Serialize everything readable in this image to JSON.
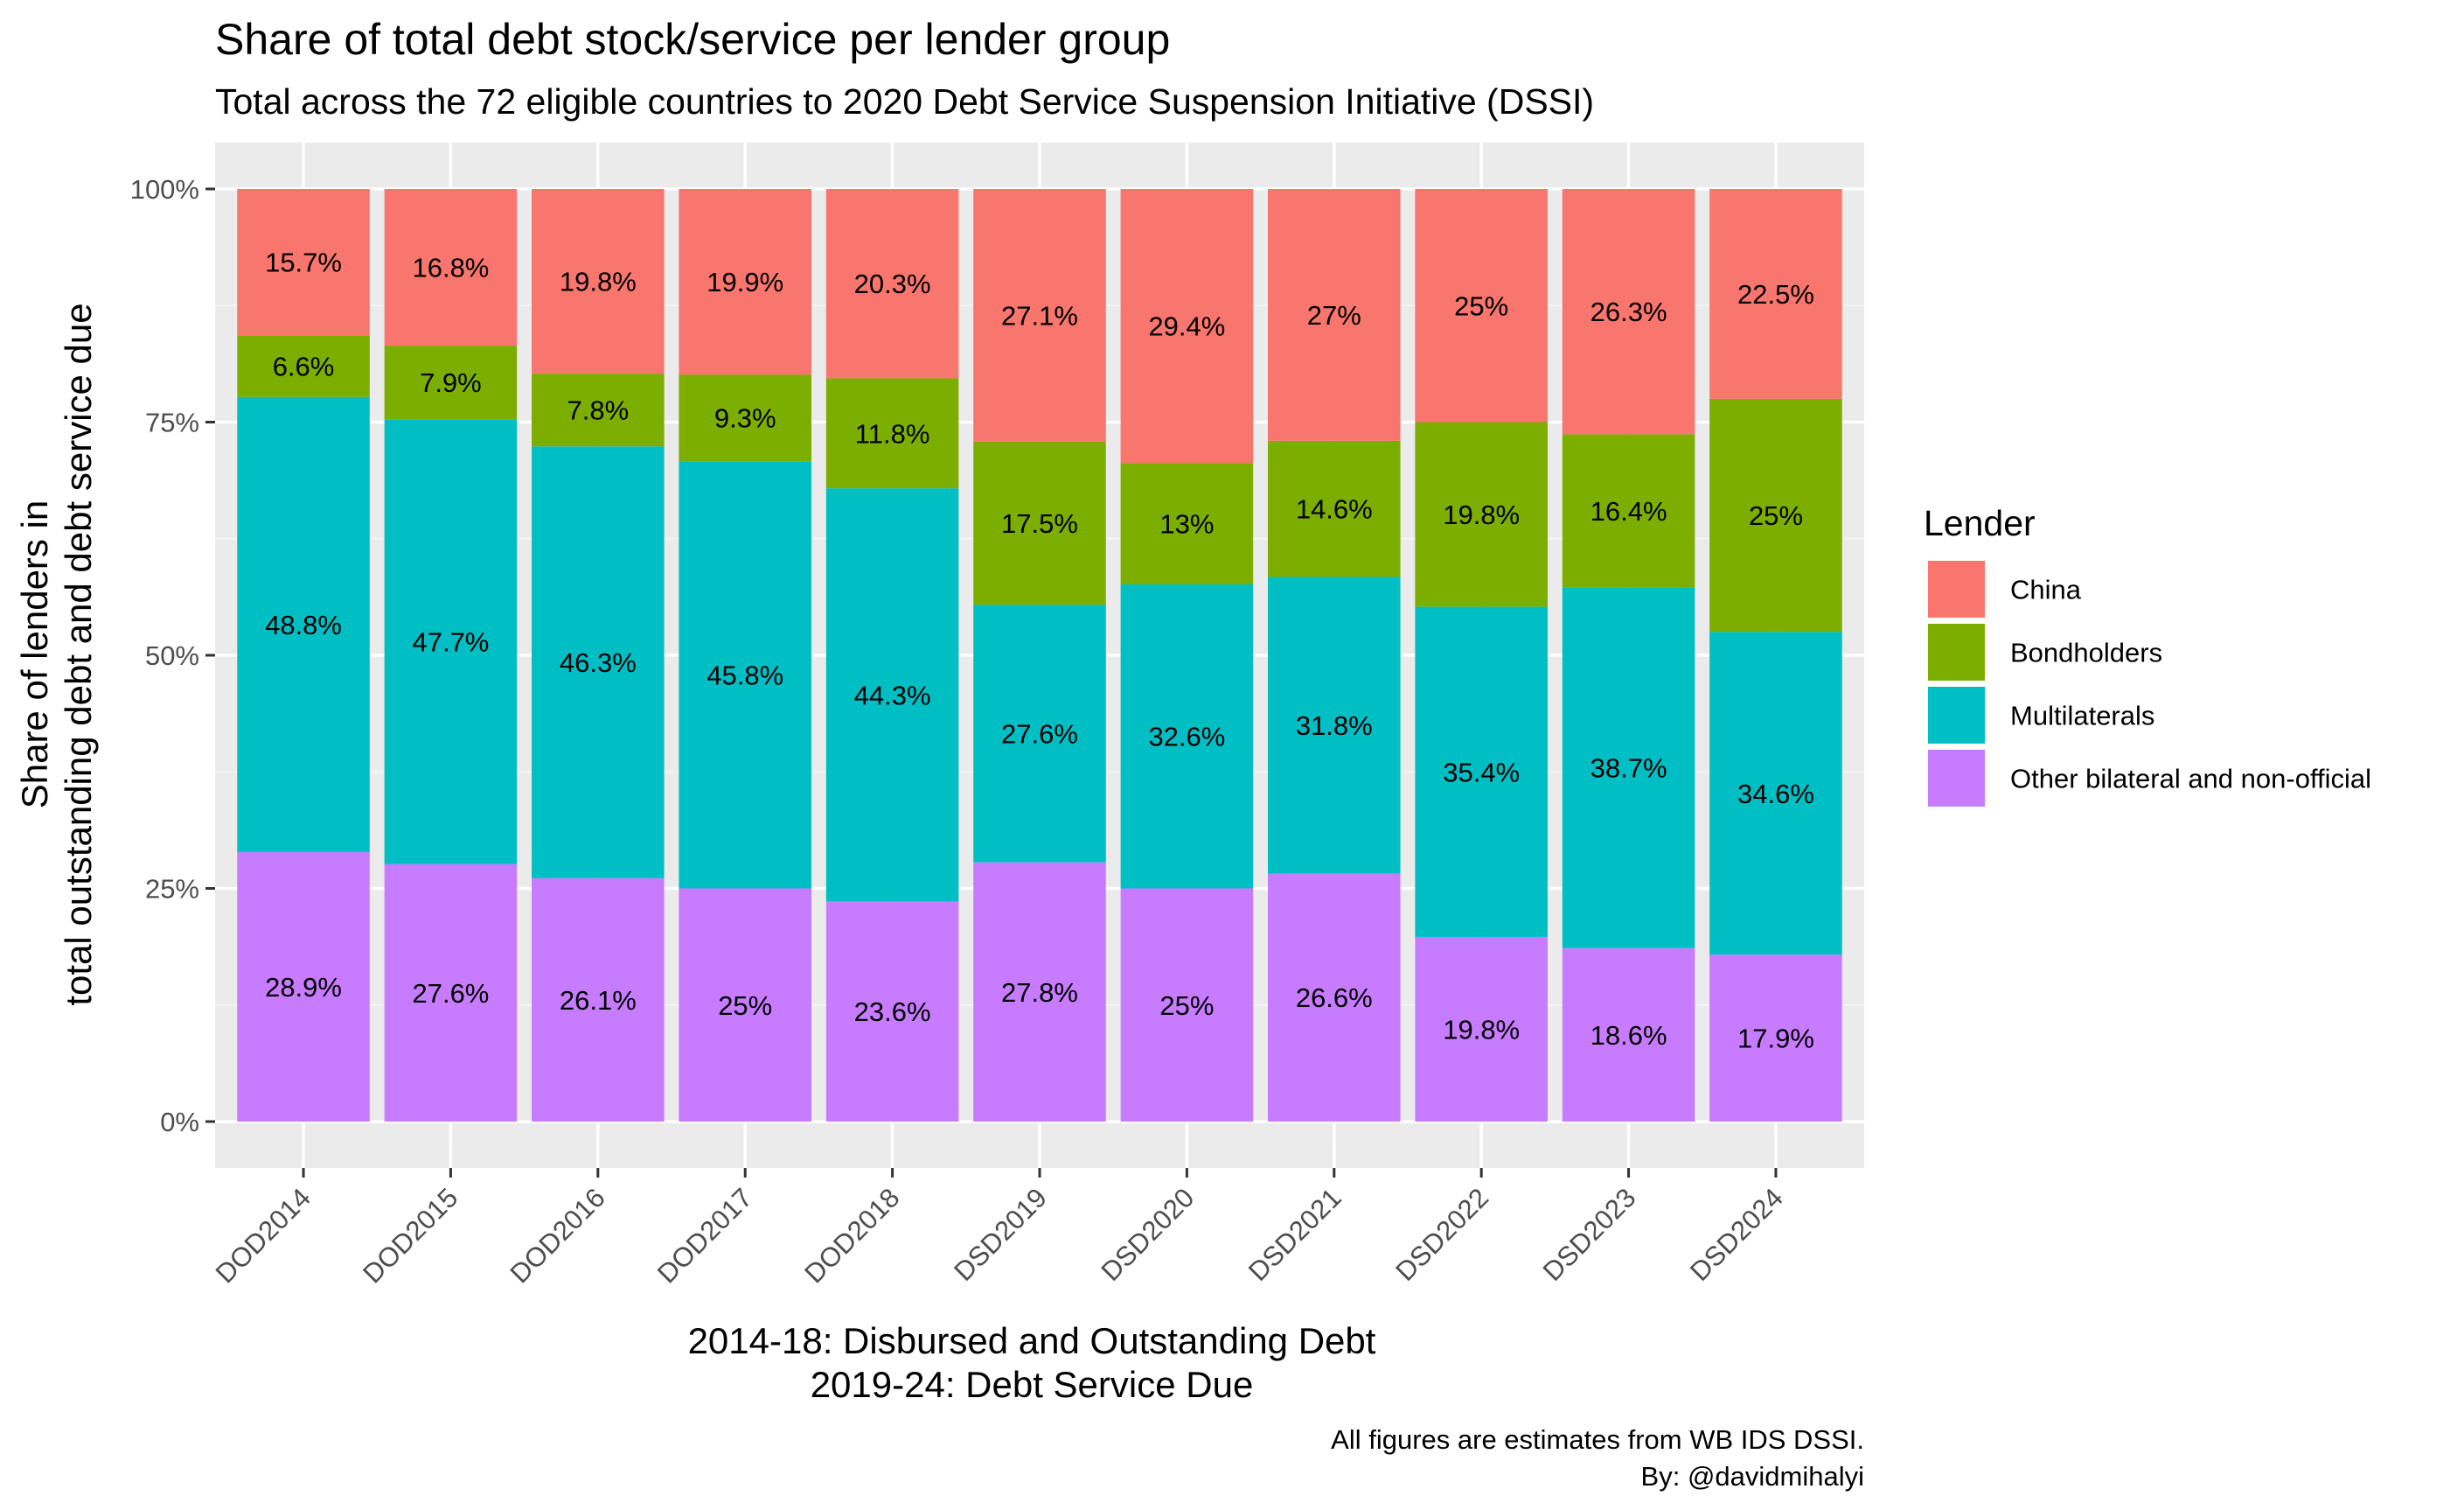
{
  "colors": {
    "panel_bg": "#EBEBEB",
    "grid_major": "#FFFFFF",
    "grid_minor": "#F5F5F5",
    "China": "#F8766D",
    "Bondholders": "#7CAE00",
    "Multilaterals": "#00BFC4",
    "Other bilateral and non-official": "#C77CFF"
  },
  "chart_data": {
    "type": "bar",
    "stacked": true,
    "normalized": true,
    "title": "Share of total debt stock/service per lender group",
    "subtitle": "Total across the 72 eligible countries to 2020 Debt Service Suspension Initiative (DSSI)",
    "ylabel_lines": [
      "Share of lenders in",
      "total outstanding debt  and debt service due"
    ],
    "xlabel_lines": [
      "2014-18: Disbursed and Outstanding Debt",
      "2019-24: Debt Service Due"
    ],
    "caption_lines": [
      "All figures are  estimates from WB IDS DSSI.",
      "By: @davidmihalyi"
    ],
    "categories": [
      "DOD2014",
      "DOD2015",
      "DOD2016",
      "DOD2017",
      "DOD2018",
      "DSD2019",
      "DSD2020",
      "DSD2021",
      "DSD2022",
      "DSD2023",
      "DSD2024"
    ],
    "series": [
      {
        "name": "Other bilateral and non-official",
        "values": [
          28.9,
          27.6,
          26.1,
          25,
          23.6,
          27.8,
          25,
          26.6,
          19.8,
          18.6,
          17.9
        ],
        "labels": [
          "28.9%",
          "27.6%",
          "26.1%",
          "25%",
          "23.6%",
          "27.8%",
          "25%",
          "26.6%",
          "19.8%",
          "18.6%",
          "17.9%"
        ]
      },
      {
        "name": "Multilaterals",
        "values": [
          48.8,
          47.7,
          46.3,
          45.8,
          44.3,
          27.6,
          32.6,
          31.8,
          35.4,
          38.7,
          34.6
        ],
        "labels": [
          "48.8%",
          "47.7%",
          "46.3%",
          "45.8%",
          "44.3%",
          "27.6%",
          "32.6%",
          "31.8%",
          "35.4%",
          "38.7%",
          "34.6%"
        ]
      },
      {
        "name": "Bondholders",
        "values": [
          6.6,
          7.9,
          7.8,
          9.3,
          11.8,
          17.5,
          13,
          14.6,
          19.8,
          16.4,
          25
        ],
        "labels": [
          "6.6%",
          "7.9%",
          "7.8%",
          "9.3%",
          "11.8%",
          "17.5%",
          "13%",
          "14.6%",
          "19.8%",
          "16.4%",
          "25%"
        ]
      },
      {
        "name": "China",
        "values": [
          15.7,
          16.8,
          19.8,
          19.9,
          20.3,
          27.1,
          29.4,
          27,
          25,
          26.3,
          22.5
        ],
        "labels": [
          "15.7%",
          "16.8%",
          "19.8%",
          "19.9%",
          "20.3%",
          "27.1%",
          "29.4%",
          "27%",
          "25%",
          "26.3%",
          "22.5%"
        ]
      }
    ],
    "ylim": [
      0,
      100
    ],
    "yticks": [
      "0%",
      "25%",
      "50%",
      "75%",
      "100%"
    ],
    "ytick_values": [
      0,
      25,
      50,
      75,
      100
    ],
    "legend": {
      "title": "Lender",
      "position": "right",
      "entries": [
        "China",
        "Bondholders",
        "Multilaterals",
        "Other bilateral and non-official"
      ]
    },
    "grid": true
  }
}
